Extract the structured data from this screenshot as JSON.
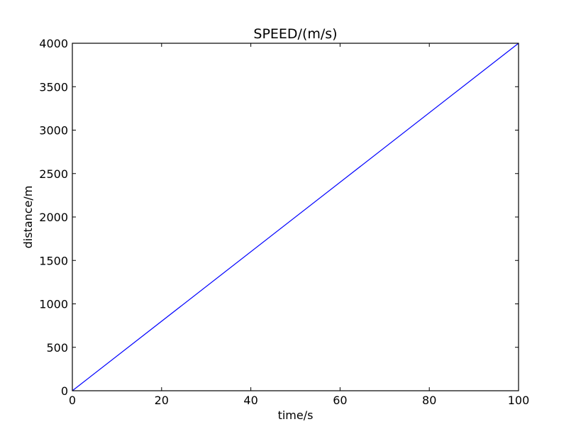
{
  "chart_data": {
    "type": "line",
    "title": "SPEED/(m/s)",
    "xlabel": "time/s",
    "ylabel": "distance/m",
    "xlim": [
      0,
      100
    ],
    "ylim": [
      0,
      4000
    ],
    "xticks": [
      0,
      20,
      40,
      60,
      80,
      100
    ],
    "yticks": [
      0,
      500,
      1000,
      1500,
      2000,
      2500,
      3000,
      3500,
      4000
    ],
    "grid": false,
    "series": [
      {
        "color": "#0000ff",
        "x": [
          0,
          100
        ],
        "y": [
          0,
          4000
        ]
      }
    ]
  }
}
